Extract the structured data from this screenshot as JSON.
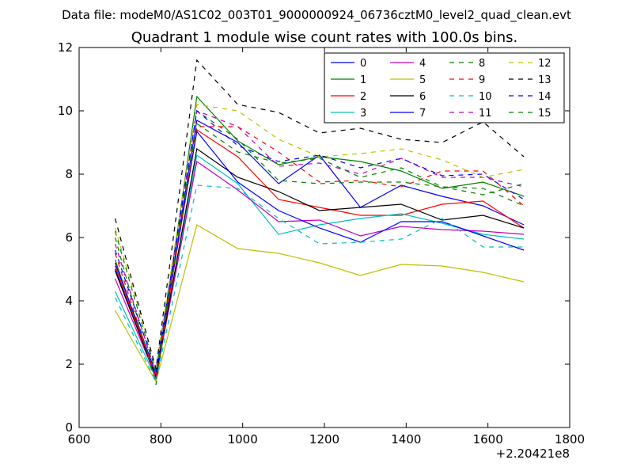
{
  "supertitle": "Data file: modeM0/AS1C02_003T01_9000000924_06736cztM0_level2_quad_clean.evt",
  "chart_data": {
    "type": "line",
    "title": "Quadrant 1 module wise count rates with 100.0s bins.",
    "xlabel": "",
    "ylabel": "",
    "x_offset_label": "+2.20421e8",
    "xlim": [
      600,
      1800
    ],
    "ylim": [
      0,
      12
    ],
    "x_ticks": [
      600,
      800,
      1000,
      1200,
      1400,
      1600,
      1800
    ],
    "y_ticks": [
      0,
      2,
      4,
      6,
      8,
      10,
      12
    ],
    "grid": false,
    "legend_position": "top-right",
    "legend_columns": 4,
    "x": [
      688,
      788,
      888,
      988,
      1088,
      1188,
      1288,
      1388,
      1488,
      1588,
      1688
    ],
    "series": [
      {
        "name": "0",
        "color": "#0000ff",
        "dash": "solid",
        "values": [
          5.0,
          1.6,
          9.7,
          9.0,
          7.7,
          8.6,
          6.95,
          7.65,
          7.3,
          7.0,
          6.4
        ]
      },
      {
        "name": "1",
        "color": "#008000",
        "dash": "solid",
        "values": [
          5.3,
          1.5,
          10.45,
          9.05,
          8.3,
          8.55,
          8.4,
          8.1,
          7.55,
          7.75,
          7.3
        ]
      },
      {
        "name": "2",
        "color": "#ff0000",
        "dash": "solid",
        "values": [
          5.1,
          1.6,
          9.4,
          8.55,
          7.2,
          6.95,
          6.7,
          6.7,
          7.05,
          7.15,
          6.3
        ]
      },
      {
        "name": "3",
        "color": "#00bfbf",
        "dash": "solid",
        "values": [
          4.3,
          1.55,
          8.6,
          7.7,
          6.1,
          6.4,
          6.6,
          6.75,
          6.45,
          6.1,
          5.95
        ]
      },
      {
        "name": "4",
        "color": "#bf00bf",
        "dash": "solid",
        "values": [
          4.7,
          1.6,
          8.4,
          7.5,
          6.5,
          6.55,
          6.05,
          6.35,
          6.25,
          6.2,
          6.1
        ]
      },
      {
        "name": "5",
        "color": "#bfbf00",
        "dash": "solid",
        "values": [
          3.7,
          1.45,
          6.4,
          5.65,
          5.5,
          5.2,
          4.8,
          5.15,
          5.1,
          4.9,
          4.6
        ]
      },
      {
        "name": "6",
        "color": "#000000",
        "dash": "solid",
        "values": [
          4.95,
          1.6,
          8.8,
          7.9,
          7.45,
          6.85,
          6.95,
          7.05,
          6.55,
          6.7,
          6.3
        ]
      },
      {
        "name": "7",
        "color": "#0000ff",
        "dash": "solid",
        "values": [
          5.2,
          1.7,
          9.35,
          7.75,
          6.85,
          6.3,
          5.85,
          6.5,
          6.5,
          6.05,
          5.6
        ]
      },
      {
        "name": "8",
        "color": "#008000",
        "dash": "dashed",
        "values": [
          6.0,
          1.35,
          10.0,
          9.1,
          7.8,
          7.7,
          7.75,
          7.75,
          7.6,
          7.55,
          7.0
        ]
      },
      {
        "name": "9",
        "color": "#ff0000",
        "dash": "dashed",
        "values": [
          5.5,
          1.55,
          9.5,
          9.5,
          8.7,
          7.75,
          7.8,
          7.6,
          8.1,
          8.1,
          7.0
        ]
      },
      {
        "name": "10",
        "color": "#00bfbf",
        "dash": "dashed",
        "values": [
          4.1,
          1.45,
          7.65,
          7.55,
          6.6,
          5.8,
          5.85,
          5.95,
          6.6,
          5.7,
          5.7
        ]
      },
      {
        "name": "11",
        "color": "#bf00bf",
        "dash": "dashed",
        "values": [
          5.8,
          1.7,
          10.0,
          9.5,
          8.25,
          8.35,
          8.0,
          8.5,
          7.9,
          7.9,
          7.6
        ]
      },
      {
        "name": "12",
        "color": "#bfbf00",
        "dash": "dashed",
        "values": [
          6.3,
          1.9,
          10.2,
          10.0,
          9.1,
          8.55,
          8.65,
          8.8,
          8.45,
          7.9,
          8.15
        ]
      },
      {
        "name": "13",
        "color": "#000000",
        "dash": "dashed",
        "values": [
          6.6,
          1.85,
          11.6,
          10.2,
          9.95,
          9.3,
          9.45,
          9.1,
          9.0,
          9.65,
          8.55
        ]
      },
      {
        "name": "14",
        "color": "#0000ff",
        "dash": "dashed",
        "values": [
          5.6,
          1.8,
          10.0,
          8.9,
          8.4,
          8.6,
          8.2,
          8.5,
          7.95,
          8.0,
          7.2
        ]
      },
      {
        "name": "15",
        "color": "#008000",
        "dash": "dashed",
        "values": [
          6.2,
          1.75,
          9.6,
          8.7,
          8.35,
          8.5,
          7.9,
          8.2,
          7.6,
          7.35,
          7.7
        ]
      }
    ]
  }
}
